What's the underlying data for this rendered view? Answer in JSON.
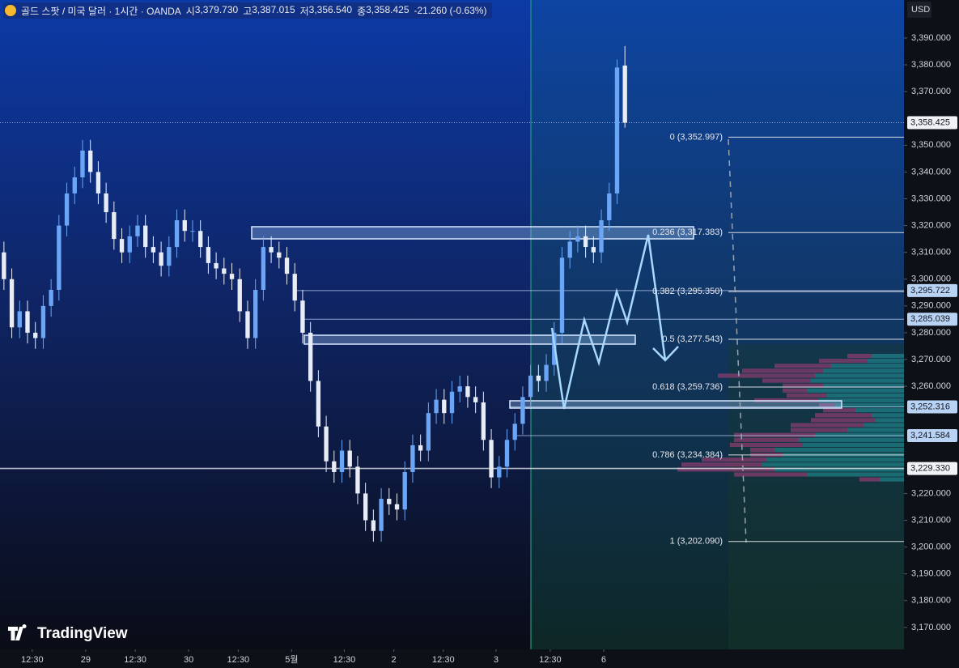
{
  "header": {
    "symbol": "골드 스팟 / 미국 달러 · 1시간 · OANDA",
    "ohlc": [
      {
        "prefix": "시",
        "value": "3,379.730"
      },
      {
        "prefix": "고",
        "value": "3,387.015"
      },
      {
        "prefix": "저",
        "value": "3,356.540"
      },
      {
        "prefix": "종",
        "value": "3,358.425"
      }
    ],
    "change": "-21.260 (-0.63%)"
  },
  "logo": "TradingView",
  "chart_data": {
    "type": "candlestick",
    "currency": "USD",
    "up_color": "#6aa6f5",
    "down_color": "#e8edf5",
    "open": [
      3310,
      3300,
      3282,
      3288,
      3280,
      3278,
      3290,
      3296,
      3320,
      3332,
      3338,
      3348,
      3340,
      3332,
      3325,
      3315,
      3310,
      3316,
      3320,
      3312,
      3310,
      3305,
      3312,
      3322,
      3318,
      3318,
      3312,
      3306,
      3304,
      3302,
      3300,
      3288,
      3278,
      3296,
      3312,
      3310,
      3308,
      3302,
      3292,
      3280,
      3262,
      3245,
      3232,
      3228,
      3236,
      3230,
      3220,
      3210,
      3206,
      3218,
      3216,
      3214,
      3228,
      3238,
      3236,
      3250,
      3255,
      3250,
      3258,
      3260,
      3256,
      3254,
      3240,
      3226,
      3230,
      3240,
      3246,
      3256,
      3264,
      3262,
      3268,
      3280,
      3308,
      3314,
      3316,
      3312,
      3310,
      3322,
      3332,
      3379.73
    ],
    "high": [
      3314,
      3304,
      3292,
      3292,
      3284,
      3294,
      3300,
      3324,
      3336,
      3342,
      3352,
      3352,
      3344,
      3336,
      3329,
      3319,
      3320,
      3324,
      3324,
      3316,
      3314,
      3316,
      3326,
      3326,
      3322,
      3322,
      3316,
      3310,
      3308,
      3306,
      3304,
      3292,
      3300,
      3316,
      3316,
      3314,
      3312,
      3306,
      3296,
      3284,
      3266,
      3249,
      3236,
      3240,
      3240,
      3234,
      3224,
      3214,
      3222,
      3222,
      3220,
      3232,
      3242,
      3242,
      3254,
      3259,
      3259,
      3262,
      3264,
      3264,
      3260,
      3258,
      3244,
      3234,
      3244,
      3250,
      3260,
      3268,
      3268,
      3272,
      3284,
      3312,
      3318,
      3320,
      3320,
      3316,
      3326,
      3336,
      3382,
      3387.015
    ],
    "low": [
      3296,
      3278,
      3278,
      3276,
      3274,
      3274,
      3286,
      3292,
      3316,
      3328,
      3334,
      3336,
      3328,
      3321,
      3311,
      3306,
      3306,
      3312,
      3308,
      3306,
      3301,
      3301,
      3308,
      3314,
      3314,
      3308,
      3302,
      3300,
      3298,
      3296,
      3284,
      3274,
      3274,
      3292,
      3306,
      3304,
      3298,
      3288,
      3276,
      3258,
      3241,
      3228,
      3224,
      3224,
      3226,
      3216,
      3206,
      3202,
      3202,
      3212,
      3210,
      3210,
      3224,
      3232,
      3232,
      3246,
      3246,
      3246,
      3254,
      3252,
      3250,
      3236,
      3222,
      3222,
      3226,
      3236,
      3242,
      3252,
      3258,
      3258,
      3264,
      3276,
      3304,
      3310,
      3308,
      3306,
      3306,
      3318,
      3328,
      3356.54
    ],
    "close": [
      3300,
      3282,
      3288,
      3280,
      3278,
      3290,
      3296,
      3320,
      3332,
      3338,
      3348,
      3340,
      3332,
      3325,
      3315,
      3310,
      3316,
      3320,
      3312,
      3310,
      3305,
      3312,
      3322,
      3318,
      3318,
      3312,
      3306,
      3304,
      3302,
      3300,
      3288,
      3278,
      3296,
      3312,
      3310,
      3308,
      3302,
      3292,
      3280,
      3262,
      3245,
      3232,
      3228,
      3236,
      3230,
      3220,
      3210,
      3206,
      3218,
      3216,
      3214,
      3228,
      3238,
      3236,
      3250,
      3255,
      3250,
      3258,
      3260,
      3256,
      3254,
      3240,
      3226,
      3230,
      3240,
      3246,
      3256,
      3264,
      3262,
      3268,
      3280,
      3308,
      3314,
      3316,
      3312,
      3310,
      3322,
      3332,
      3379,
      3358.425
    ],
    "xlim": [
      -0.5,
      114.5
    ],
    "xticks": [
      {
        "value": 3.6,
        "label": "12:30"
      },
      {
        "value": 10.4,
        "label": "29"
      },
      {
        "value": 16.7,
        "label": "12:30"
      },
      {
        "value": 23.5,
        "label": "30"
      },
      {
        "value": 29.8,
        "label": "12:30"
      },
      {
        "value": 36.6,
        "label": "5월"
      },
      {
        "value": 43.3,
        "label": "12:30"
      },
      {
        "value": 49.6,
        "label": "2"
      },
      {
        "value": 55.9,
        "label": "12:30"
      },
      {
        "value": 62.6,
        "label": "3"
      },
      {
        "value": 69.5,
        "label": "12:30"
      },
      {
        "value": 76.3,
        "label": "6"
      }
    ],
    "ylim": [
      3161.8,
      3404.2
    ],
    "yticks": [
      {
        "value": 3390,
        "label": "3,390.000"
      },
      {
        "value": 3380,
        "label": "3,380.000"
      },
      {
        "value": 3370,
        "label": "3,370.000"
      },
      {
        "value": 3350,
        "label": "3,350.000"
      },
      {
        "value": 3340,
        "label": "3,340.000"
      },
      {
        "value": 3330,
        "label": "3,330.000"
      },
      {
        "value": 3320,
        "label": "3,320.000"
      },
      {
        "value": 3310,
        "label": "3,310.000"
      },
      {
        "value": 3300,
        "label": "3,300.000"
      },
      {
        "value": 3290,
        "label": "3,290.000"
      },
      {
        "value": 3280,
        "label": "3,280.000"
      },
      {
        "value": 3270,
        "label": "3,270.000"
      },
      {
        "value": 3260,
        "label": "3,260.000"
      },
      {
        "value": 3220,
        "label": "3,220.000"
      },
      {
        "value": 3210,
        "label": "3,210.000"
      },
      {
        "value": 3200,
        "label": "3,200.000"
      },
      {
        "value": 3190,
        "label": "3,190.000"
      },
      {
        "value": 3180,
        "label": "3,180.000"
      },
      {
        "value": 3170,
        "label": "3,170.000"
      }
    ],
    "price_tags": [
      {
        "value": 3358.425,
        "label": "3,358.425"
      },
      {
        "value": 3295.722,
        "label": "3,295.722"
      },
      {
        "value": 3285.039,
        "label": "3,285.039"
      },
      {
        "value": 3252.316,
        "label": "3,252.316"
      },
      {
        "value": 3241.584,
        "label": "3,241.584"
      },
      {
        "value": 3229.33,
        "label": "3,229.330"
      }
    ],
    "fib_levels": [
      {
        "value": 3352.997,
        "label": "0 (3,352.997)"
      },
      {
        "value": 3317.383,
        "label": "0.236 (3,317.383)"
      },
      {
        "value": 3295.35,
        "label": "0.382 (3,295.350)"
      },
      {
        "value": 3277.543,
        "label": "0.5 (3,277.543)"
      },
      {
        "value": 3259.736,
        "label": "0.618 (3,259.736)"
      },
      {
        "value": 3234.384,
        "label": "0.786 (3,234.384)"
      },
      {
        "value": 3202.09,
        "label": "1 (3,202.090)"
      }
    ],
    "grid": false
  }
}
